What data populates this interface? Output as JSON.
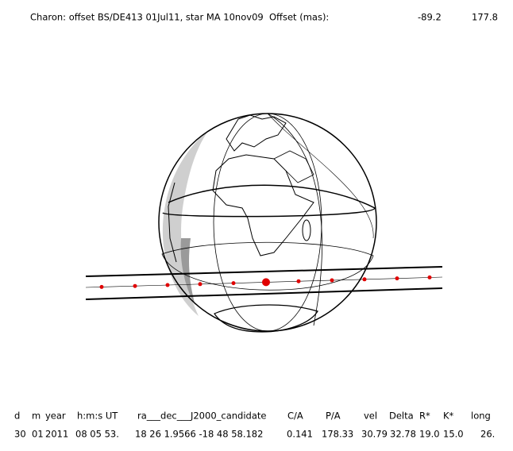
{
  "header": {
    "title": "Charon: offset BS/DE413 01Jul11, star MA 10nov09  Offset (mas):",
    "offset_x": "-89.2",
    "offset_y": "177.8"
  },
  "table": {
    "columns": [
      "d",
      "m",
      "year",
      "h:m:s UT",
      "ra___dec___J2000_candidate",
      "C/A",
      "P/A",
      "vel",
      "Delta",
      "R*",
      "K*",
      "long"
    ],
    "rows": [
      [
        "30",
        "01",
        "2011",
        "08 05 53.",
        "18 26  1.9566 -18 48  58.182",
        "0.141",
        "178.33",
        "30.79",
        "32.78",
        "19.0",
        "15.0",
        "26."
      ]
    ]
  }
}
